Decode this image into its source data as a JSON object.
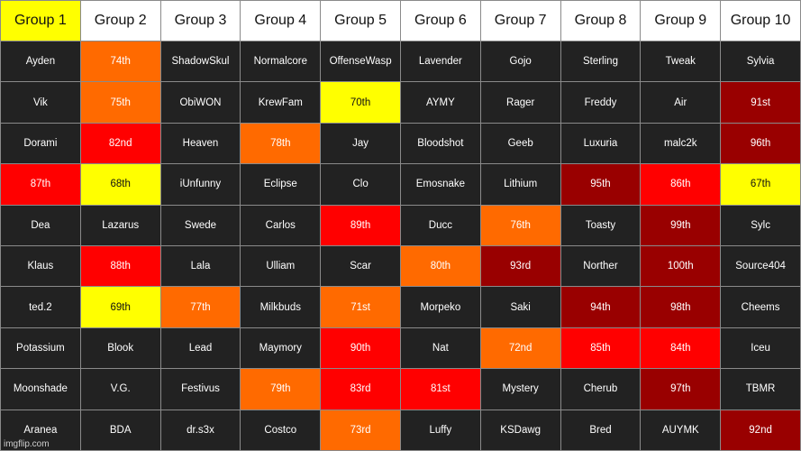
{
  "colors": {
    "default": "#222222",
    "yellow": "#ffff00",
    "orange": "#ff6a00",
    "red": "#ff0000",
    "darkred": "#990000",
    "header": "#ffffff",
    "header_highlight": "#ffff00"
  },
  "headers": [
    {
      "label": "Group 1",
      "color": "yellow"
    },
    {
      "label": "Group 2"
    },
    {
      "label": "Group 3"
    },
    {
      "label": "Group 4"
    },
    {
      "label": "Group 5"
    },
    {
      "label": "Group 6"
    },
    {
      "label": "Group 7"
    },
    {
      "label": "Group 8"
    },
    {
      "label": "Group 9"
    },
    {
      "label": "Group 10"
    }
  ],
  "rows": [
    [
      {
        "text": "Ayden"
      },
      {
        "text": "74th",
        "color": "orange"
      },
      {
        "text": "ShadowSkul"
      },
      {
        "text": "Normalcore"
      },
      {
        "text": "OffenseWasp"
      },
      {
        "text": "Lavender"
      },
      {
        "text": "Gojo"
      },
      {
        "text": "Sterling"
      },
      {
        "text": "Tweak"
      },
      {
        "text": "Sylvia"
      }
    ],
    [
      {
        "text": "Vik"
      },
      {
        "text": "75th",
        "color": "orange"
      },
      {
        "text": "ObiWON"
      },
      {
        "text": "KrewFam"
      },
      {
        "text": "70th",
        "color": "yellow"
      },
      {
        "text": "AYMY"
      },
      {
        "text": "Rager"
      },
      {
        "text": "Freddy"
      },
      {
        "text": "Air"
      },
      {
        "text": "91st",
        "color": "darkred"
      }
    ],
    [
      {
        "text": "Dorami"
      },
      {
        "text": "82nd",
        "color": "red"
      },
      {
        "text": "Heaven"
      },
      {
        "text": "78th",
        "color": "orange"
      },
      {
        "text": "Jay"
      },
      {
        "text": "Bloodshot"
      },
      {
        "text": "Geeb"
      },
      {
        "text": "Luxuria"
      },
      {
        "text": "malc2k"
      },
      {
        "text": "96th",
        "color": "darkred"
      }
    ],
    [
      {
        "text": "87th",
        "color": "red"
      },
      {
        "text": "68th",
        "color": "yellow"
      },
      {
        "text": "iUnfunny"
      },
      {
        "text": "Eclipse"
      },
      {
        "text": "Clo"
      },
      {
        "text": "Emosnake"
      },
      {
        "text": "Lithium"
      },
      {
        "text": "95th",
        "color": "darkred"
      },
      {
        "text": "86th",
        "color": "red"
      },
      {
        "text": "67th",
        "color": "yellow"
      }
    ],
    [
      {
        "text": "Dea"
      },
      {
        "text": "Lazarus"
      },
      {
        "text": "Swede"
      },
      {
        "text": "Carlos"
      },
      {
        "text": "89th",
        "color": "red"
      },
      {
        "text": "Ducc"
      },
      {
        "text": "76th",
        "color": "orange"
      },
      {
        "text": "Toasty"
      },
      {
        "text": "99th",
        "color": "darkred"
      },
      {
        "text": "Sylc"
      }
    ],
    [
      {
        "text": "Klaus"
      },
      {
        "text": "88th",
        "color": "red"
      },
      {
        "text": "Lala"
      },
      {
        "text": "Ulliam"
      },
      {
        "text": "Scar"
      },
      {
        "text": "80th",
        "color": "orange"
      },
      {
        "text": "93rd",
        "color": "darkred"
      },
      {
        "text": "Norther"
      },
      {
        "text": "100th",
        "color": "darkred"
      },
      {
        "text": "Source404"
      }
    ],
    [
      {
        "text": "ted.2"
      },
      {
        "text": "69th",
        "color": "yellow"
      },
      {
        "text": "77th",
        "color": "orange"
      },
      {
        "text": "Milkbuds"
      },
      {
        "text": "71st",
        "color": "orange"
      },
      {
        "text": "Morpeko"
      },
      {
        "text": "Saki"
      },
      {
        "text": "94th",
        "color": "darkred"
      },
      {
        "text": "98th",
        "color": "darkred"
      },
      {
        "text": "Cheems"
      }
    ],
    [
      {
        "text": "Potassium"
      },
      {
        "text": "Blook"
      },
      {
        "text": "Lead"
      },
      {
        "text": "Maymory"
      },
      {
        "text": "90th",
        "color": "red"
      },
      {
        "text": "Nat"
      },
      {
        "text": "72nd",
        "color": "orange"
      },
      {
        "text": "85th",
        "color": "red"
      },
      {
        "text": "84th",
        "color": "red"
      },
      {
        "text": "Iceu"
      }
    ],
    [
      {
        "text": "Moonshade"
      },
      {
        "text": "V.G."
      },
      {
        "text": "Festivus"
      },
      {
        "text": "79th",
        "color": "orange"
      },
      {
        "text": "83rd",
        "color": "red"
      },
      {
        "text": "81st",
        "color": "red"
      },
      {
        "text": "Mystery"
      },
      {
        "text": "Cherub"
      },
      {
        "text": "97th",
        "color": "darkred"
      },
      {
        "text": "TBMR"
      }
    ],
    [
      {
        "text": "Aranea"
      },
      {
        "text": "BDA"
      },
      {
        "text": "dr.s3x"
      },
      {
        "text": "Costco"
      },
      {
        "text": "73rd",
        "color": "orange"
      },
      {
        "text": "Luffy"
      },
      {
        "text": "KSDawg"
      },
      {
        "text": "Bred"
      },
      {
        "text": "AUYMK"
      },
      {
        "text": "92nd",
        "color": "darkred"
      }
    ]
  ],
  "watermark": "imgflip.com"
}
